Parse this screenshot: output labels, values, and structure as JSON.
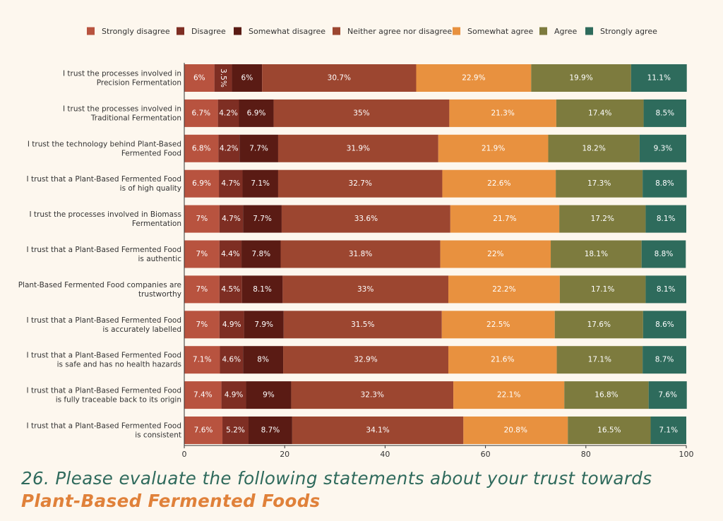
{
  "caption": {
    "text": "26. Please evaluate the following statements about your trust towards ",
    "highlight": "Plant-Based Fermented Foods"
  },
  "chart_data": {
    "type": "bar",
    "orientation": "horizontal",
    "stacked": true,
    "legend_position": "top",
    "xlim": [
      0,
      100
    ],
    "xticks": [
      0,
      20,
      40,
      60,
      80,
      100
    ],
    "categories": [
      "I trust the processes involved in Precision Fermentation",
      "I trust the processes involved in Traditional Fermentation",
      "I trust the technology behind Plant-Based Fermented Food",
      "I trust that a Plant-Based Fermented Food is of high quality",
      "I trust the processes involved in Biomass Fermentation",
      "I trust that a Plant-Based Fermented Food is authentic",
      "Plant-Based Fermented Food companies are trustworthy",
      "I trust that a Plant-Based Fermented Food is accurately labelled",
      "I trust that a Plant-Based Fermented Food is safe and has no health hazards",
      "I trust that a Plant-Based Fermented Food is fully traceable back to its origin",
      "I trust that a Plant-Based Fermented Food is consistent"
    ],
    "category_lines": [
      [
        "I trust the processes involved in",
        "Precision Fermentation"
      ],
      [
        "I trust the processes involved in",
        "Traditional Fermentation"
      ],
      [
        "I trust the technology behind Plant-Based",
        "Fermented Food"
      ],
      [
        "I trust that a Plant-Based Fermented Food",
        "is of high quality"
      ],
      [
        "I trust the processes involved in Biomass",
        "Fermentation"
      ],
      [
        "I trust that a Plant-Based Fermented Food",
        "is authentic"
      ],
      [
        "Plant-Based Fermented Food companies are",
        "trustworthy"
      ],
      [
        "I trust that a Plant-Based Fermented Food",
        "is accurately labelled"
      ],
      [
        "I trust that a Plant-Based Fermented Food",
        "is safe and has no health hazards"
      ],
      [
        "I trust that a Plant-Based Fermented Food",
        "is fully traceable back to its origin"
      ],
      [
        "I trust that a Plant-Based Fermented Food",
        "is consistent"
      ]
    ],
    "series": [
      {
        "name": "Strongly disagree",
        "color": "#b8533f",
        "values": [
          6,
          6.7,
          6.8,
          6.9,
          7,
          7,
          7,
          7,
          7.1,
          7.4,
          7.6
        ]
      },
      {
        "name": "Disagree",
        "color": "#7e2e23",
        "values": [
          3.5,
          4.2,
          4.2,
          4.7,
          4.7,
          4.4,
          4.5,
          4.9,
          4.6,
          4.9,
          5.2
        ]
      },
      {
        "name": "Somewhat disagree",
        "color": "#5a1b14",
        "values": [
          6,
          6.9,
          7.7,
          7.1,
          7.7,
          7.8,
          8.1,
          7.9,
          8,
          9,
          8.7
        ]
      },
      {
        "name": "Neither agree nor disagree",
        "color": "#9c4630",
        "values": [
          30.7,
          35,
          31.9,
          32.7,
          33.6,
          31.8,
          33,
          31.5,
          32.9,
          32.3,
          34.1
        ]
      },
      {
        "name": "Somewhat agree",
        "color": "#e8913f",
        "values": [
          22.9,
          21.3,
          21.9,
          22.6,
          21.7,
          22,
          22.2,
          22.5,
          21.6,
          22.1,
          20.8
        ]
      },
      {
        "name": "Agree",
        "color": "#7d7b3e",
        "values": [
          19.9,
          17.4,
          18.2,
          17.3,
          17.2,
          18.1,
          17.1,
          17.6,
          17.1,
          16.8,
          16.5
        ]
      },
      {
        "name": "Strongly agree",
        "color": "#2e6b5c",
        "values": [
          11.1,
          8.5,
          9.3,
          8.8,
          8.1,
          8.8,
          8.1,
          8.6,
          8.7,
          7.6,
          7.1
        ]
      }
    ],
    "labels": [
      [
        "6%",
        "3.5%",
        "6%",
        "30.7%",
        "22.9%",
        "19.9%",
        "11.1%"
      ],
      [
        "6.7%",
        "4.2%",
        "6.9%",
        "35%",
        "21.3%",
        "17.4%",
        "8.5%"
      ],
      [
        "6.8%",
        "4.2%",
        "7.7%",
        "31.9%",
        "21.9%",
        "18.2%",
        "9.3%"
      ],
      [
        "6.9%",
        "4.7%",
        "7.1%",
        "32.7%",
        "22.6%",
        "17.3%",
        "8.8%"
      ],
      [
        "7%",
        "4.7%",
        "7.7%",
        "33.6%",
        "21.7%",
        "17.2%",
        "8.1%"
      ],
      [
        "7%",
        "4.4%",
        "7.8%",
        "31.8%",
        "22%",
        "18.1%",
        "8.8%"
      ],
      [
        "7%",
        "4.5%",
        "8.1%",
        "33%",
        "22.2%",
        "17.1%",
        "8.1%"
      ],
      [
        "7%",
        "4.9%",
        "7.9%",
        "31.5%",
        "22.5%",
        "17.6%",
        "8.6%"
      ],
      [
        "7.1%",
        "4.6%",
        "8%",
        "32.9%",
        "21.6%",
        "17.1%",
        "8.7%"
      ],
      [
        "7.4%",
        "4.9%",
        "9%",
        "32.3%",
        "22.1%",
        "16.8%",
        "7.6%"
      ],
      [
        "7.6%",
        "5.2%",
        "8.7%",
        "34.1%",
        "20.8%",
        "16.5%",
        "7.1%"
      ]
    ]
  }
}
